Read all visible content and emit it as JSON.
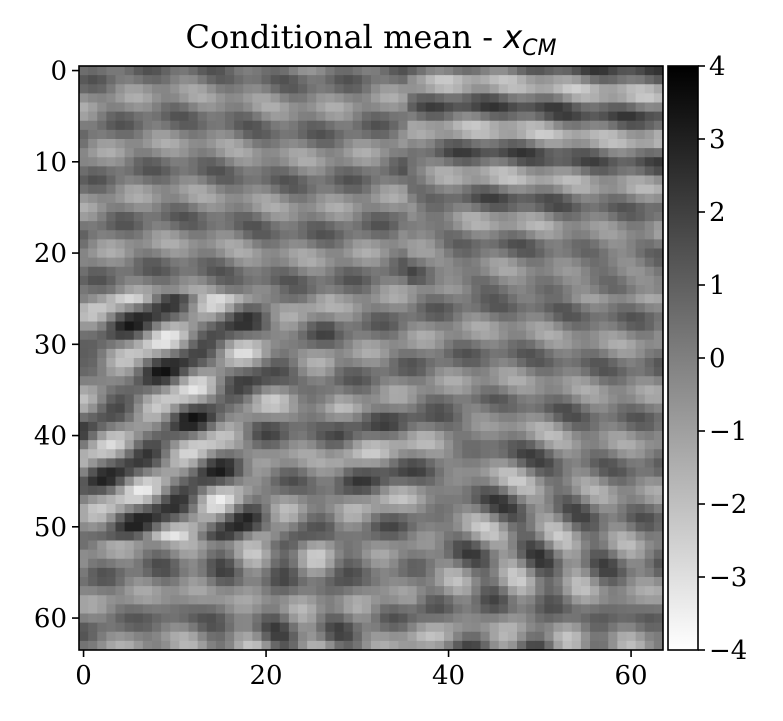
{
  "chart_data": {
    "type": "heatmap",
    "title": "Conditional mean - ",
    "title_math": "x",
    "title_math_sub": "CM",
    "colormap": "gray_r",
    "colors": {
      "low": "#ffffff",
      "high": "#000000",
      "frame": "#000000"
    },
    "x_ticks": [
      "0",
      "20",
      "40",
      "60"
    ],
    "y_ticks": [
      "0",
      "10",
      "20",
      "30",
      "40",
      "50",
      "60"
    ],
    "xlim": [
      -0.5,
      63.5
    ],
    "ylim": [
      63.5,
      -0.5
    ],
    "colorbar_ticks": [
      "4",
      "3",
      "2",
      "1",
      "0",
      "−1",
      "−2",
      "−3",
      "−4"
    ],
    "colorbar_range": [
      -4,
      4
    ],
    "grid": false
  }
}
